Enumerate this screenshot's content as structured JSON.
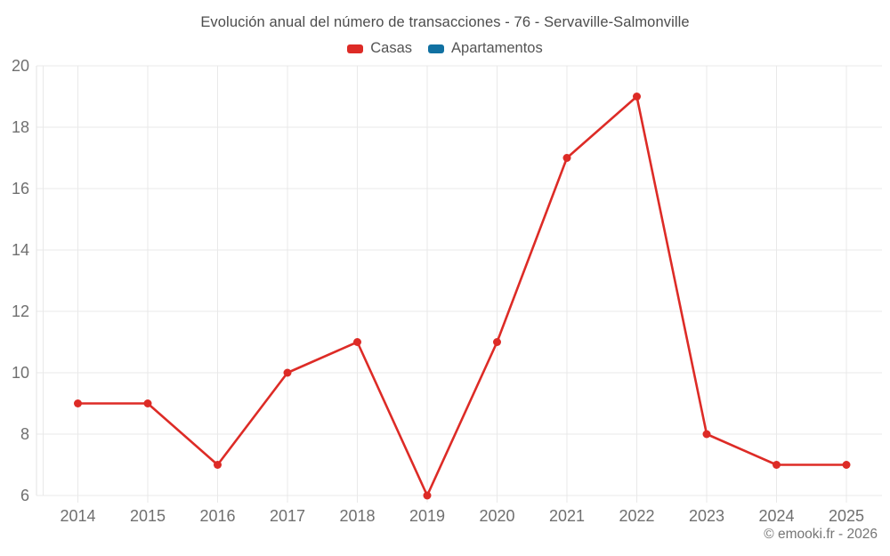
{
  "header": {
    "title": "Evolución anual del número de transacciones - 76 - Servaville-Salmonville"
  },
  "legend": [
    {
      "label": "Casas",
      "color": "#dd2b26"
    },
    {
      "label": "Apartamentos",
      "color": "#1171a2"
    }
  ],
  "footer": {
    "credit": "© emooki.fr - 2026"
  },
  "colors": {
    "grid": "#e9e9e9",
    "axis_line": "#e3e3e3",
    "tick_label": "#6f6f6f",
    "title_text": "#4c4c4c",
    "casas_red": "#dd2b26",
    "apartamentos_blue": "#1171a2"
  },
  "chart_data": {
    "type": "line",
    "title": "Evolución anual del número de transacciones - 76 - Servaville-Salmonville",
    "categories": [
      "2014",
      "2015",
      "2016",
      "2017",
      "2018",
      "2019",
      "2020",
      "2021",
      "2022",
      "2023",
      "2024",
      "2025"
    ],
    "series": [
      {
        "name": "Casas",
        "color": "#dd2b26",
        "values": [
          9,
          9,
          7,
          10,
          11,
          6,
          11,
          17,
          19,
          8,
          7,
          7
        ]
      },
      {
        "name": "Apartamentos",
        "color": "#1171a2",
        "values": []
      }
    ],
    "xlabel": "",
    "ylabel": "",
    "ylim": [
      6,
      20
    ],
    "ytick_step": 2,
    "grid": true,
    "legend_position": "top",
    "marker": "circle"
  }
}
